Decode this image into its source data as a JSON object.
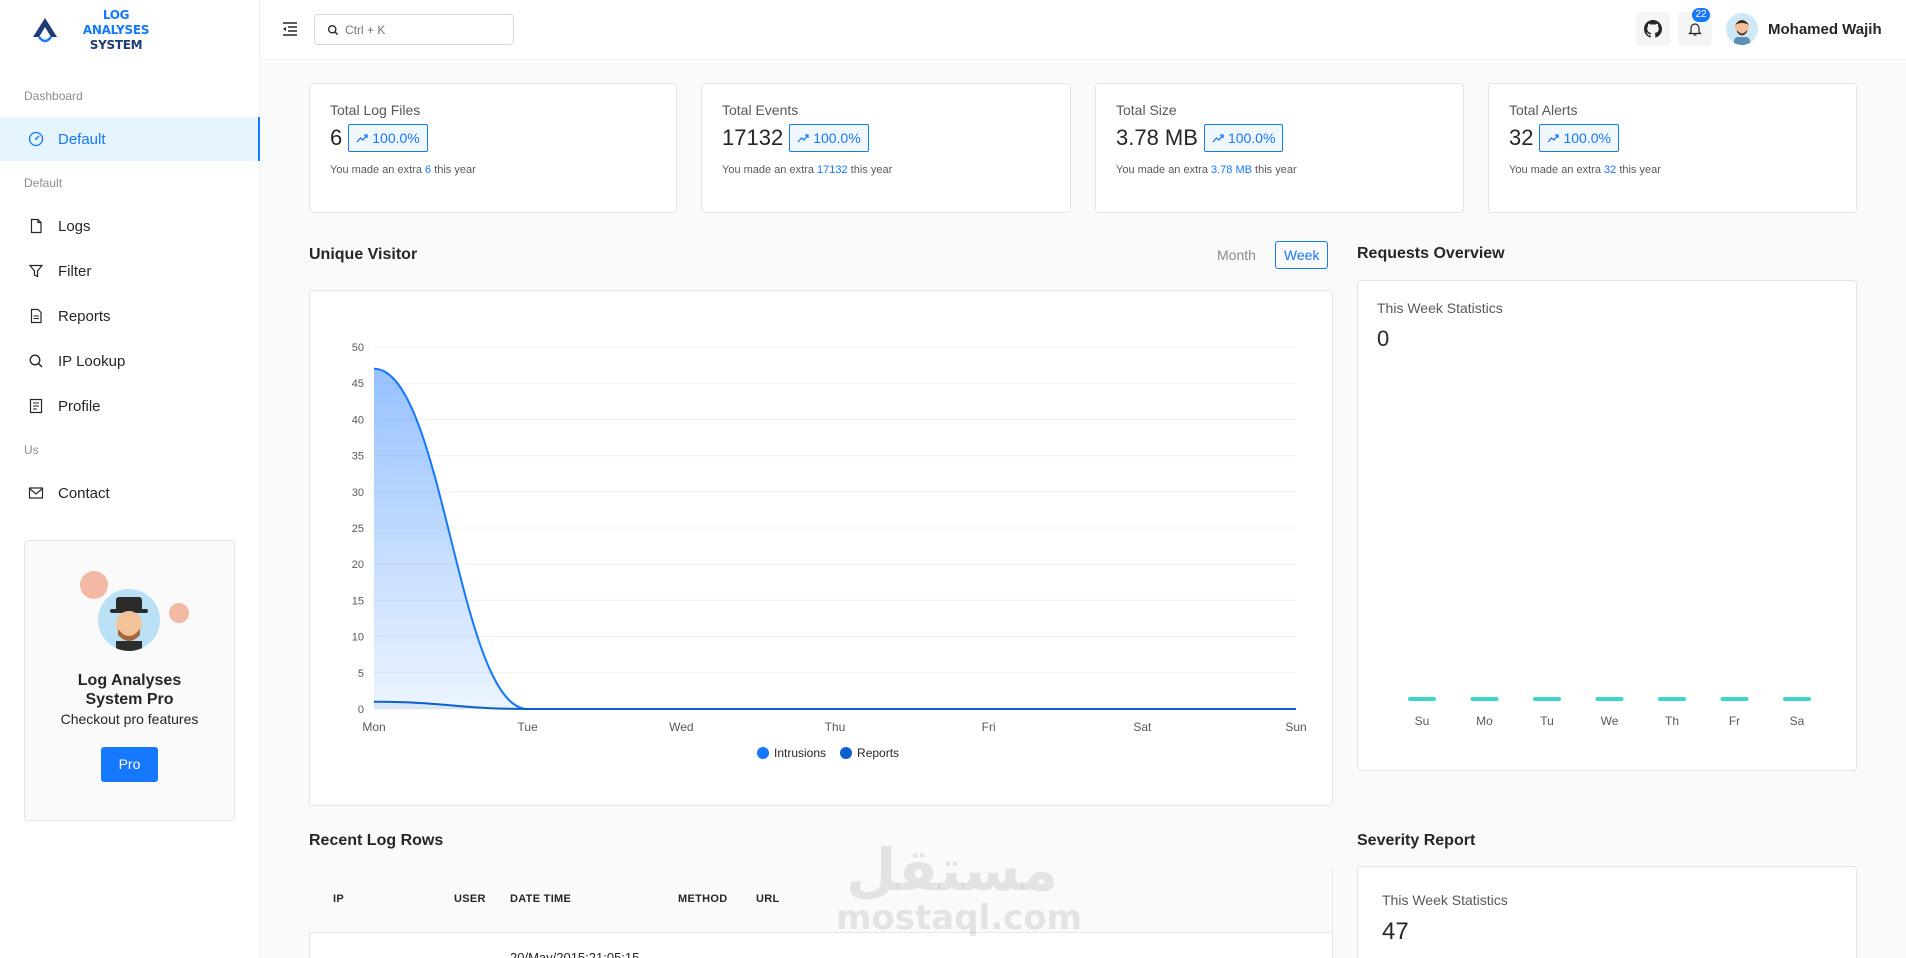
{
  "brand": {
    "line1": "LOG ANALYSES",
    "line2": "SYSTEM"
  },
  "sidebar": {
    "groups": {
      "dashboard": "Dashboard",
      "default": "Default",
      "us": "Us"
    },
    "items": [
      {
        "label": "Default",
        "icon": "dashboard-icon",
        "active": true
      },
      {
        "label": "Logs",
        "icon": "file-icon"
      },
      {
        "label": "Filter",
        "icon": "filter-icon"
      },
      {
        "label": "Reports",
        "icon": "report-icon"
      },
      {
        "label": "IP Lookup",
        "icon": "search-icon"
      },
      {
        "label": "Profile",
        "icon": "profile-icon"
      },
      {
        "label": "Contact",
        "icon": "mail-icon"
      }
    ],
    "pro_card": {
      "title": "Log Analyses System Pro",
      "subtitle": "Checkout pro features",
      "button": "Pro"
    }
  },
  "header": {
    "search_placeholder": "Ctrl + K",
    "notification_count": "22",
    "user_name": "Mohamed Wajih"
  },
  "stats": [
    {
      "title": "Total Log Files",
      "value": "6",
      "change": "100.0%",
      "note_prefix": "You made an extra",
      "note_value": "6",
      "note_suffix": "this year"
    },
    {
      "title": "Total Events",
      "value": "17132",
      "change": "100.0%",
      "note_prefix": "You made an extra",
      "note_value": "17132",
      "note_suffix": "this year"
    },
    {
      "title": "Total Size",
      "value": "3.78 MB",
      "change": "100.0%",
      "note_prefix": "You made an extra",
      "note_value": "3.78 MB",
      "note_suffix": "this year"
    },
    {
      "title": "Total Alerts",
      "value": "32",
      "change": "100.0%",
      "note_prefix": "You made an extra",
      "note_value": "32",
      "note_suffix": "this year"
    }
  ],
  "unique_visitor": {
    "title": "Unique Visitor",
    "toggle": {
      "month": "Month",
      "week": "Week",
      "selected": "Week"
    }
  },
  "requests_overview": {
    "title": "Requests Overview",
    "subtitle": "This Week Statistics",
    "value": "0"
  },
  "recent_logs": {
    "title": "Recent Log Rows",
    "columns": [
      "IP",
      "USER",
      "DATE TIME",
      "METHOD",
      "URL"
    ],
    "rows": [
      {
        "date_time": "20/May/2015:21:05:15"
      }
    ]
  },
  "severity_report": {
    "title": "Severity Report",
    "subtitle": "This Week Statistics",
    "value": "47"
  },
  "watermark": {
    "arabic": "مستقل",
    "latin": "mostaql.com"
  },
  "colors": {
    "accent": "#1677ff",
    "intrusions": "#1677ff",
    "reports": "#0b5fcf",
    "bars": "#3ed6c8"
  },
  "chart_data": [
    {
      "type": "area",
      "categories": [
        "Mon",
        "Tue",
        "Wed",
        "Thu",
        "Fri",
        "Sat",
        "Sun"
      ],
      "series": [
        {
          "name": "Intrusions",
          "values": [
            47,
            0,
            0,
            0,
            0,
            0,
            0
          ]
        },
        {
          "name": "Reports",
          "values": [
            1,
            0,
            0,
            0,
            0,
            0,
            0
          ]
        }
      ],
      "yticks": [
        0,
        5,
        10,
        15,
        20,
        25,
        30,
        35,
        40,
        45,
        50
      ],
      "ylim": [
        0,
        50
      ],
      "legend": "bottom-center",
      "grid": true
    },
    {
      "type": "bar",
      "categories": [
        "Su",
        "Mo",
        "Tu",
        "We",
        "Th",
        "Fr",
        "Sa"
      ],
      "values": [
        0,
        0,
        0,
        0,
        0,
        0,
        0
      ]
    }
  ]
}
